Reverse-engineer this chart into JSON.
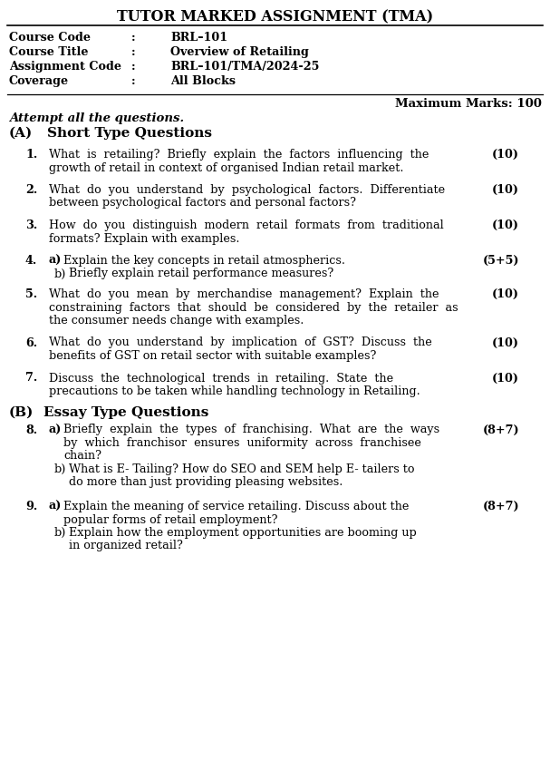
{
  "title": "TUTOR MARKED ASSIGNMENT (TMA)",
  "info_labels": [
    "Course Code",
    "Course Title",
    "Assignment Code",
    "Coverage"
  ],
  "info_colons": [
    ":",
    ":",
    ":",
    ":"
  ],
  "info_values": [
    "BRL–101",
    "Overview of Retailing",
    "BRL–101/TMA/2024-25",
    "All Blocks"
  ],
  "max_marks": "Maximum Marks: 100",
  "attempt_note": "Attempt all the questions.",
  "background_color": "#ffffff",
  "text_color": "#000000",
  "figw": 6.07,
  "figh": 8.6,
  "dpi": 100
}
